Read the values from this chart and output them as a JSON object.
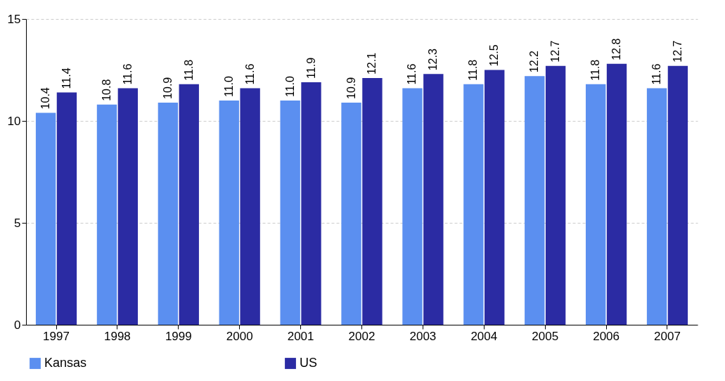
{
  "chart_data": {
    "type": "bar",
    "categories": [
      "1997",
      "1998",
      "1999",
      "2000",
      "2001",
      "2002",
      "2003",
      "2004",
      "2005",
      "2006",
      "2007"
    ],
    "series": [
      {
        "name": "Kansas",
        "color": "#5b8ff0",
        "values": [
          10.4,
          10.8,
          10.9,
          11.0,
          11.0,
          10.9,
          11.6,
          11.8,
          12.2,
          11.8,
          11.6
        ],
        "value_labels": [
          "10.4",
          "10.8",
          "10.9",
          "11.0",
          "11.0",
          "10.9",
          "11.6",
          "11.8",
          "12.2",
          "11.8",
          "11.6"
        ]
      },
      {
        "name": "US",
        "color": "#2b2ba3",
        "values": [
          11.4,
          11.6,
          11.8,
          11.6,
          11.9,
          12.1,
          12.3,
          12.5,
          12.7,
          12.8,
          12.7
        ],
        "value_labels": [
          "11.4",
          "11.6",
          "11.8",
          "11.6",
          "11.9",
          "12.1",
          "12.3",
          "12.5",
          "12.7",
          "12.8",
          "12.7"
        ]
      }
    ],
    "ylim": [
      0,
      15
    ],
    "yticks": [
      0,
      5,
      10,
      15
    ],
    "grid": "y",
    "legend": "bottom"
  }
}
